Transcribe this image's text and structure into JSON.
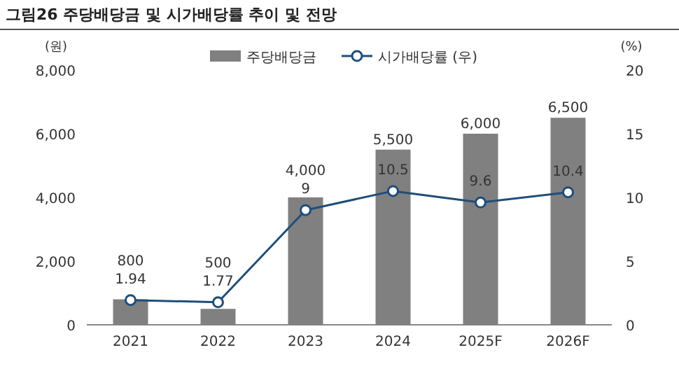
{
  "chart_data": {
    "type": "bar",
    "title": "그림26 주당배당금 및 시가배당률 추이 및 전망",
    "ylabel": "(원)",
    "y2label": "(%)",
    "categories": [
      "2021",
      "2022",
      "2023",
      "2024",
      "2025F",
      "2026F"
    ],
    "series": [
      {
        "name": "주당배당금",
        "color": "#808080",
        "values": [
          800,
          500,
          4000,
          5500,
          6000,
          6500
        ],
        "value_labels": [
          "800",
          "500",
          "4,000",
          "5,500",
          "6,000",
          "6,500"
        ]
      },
      {
        "name": "시가배당률 (우)",
        "type": "line",
        "axis": "y2",
        "color": "#1f4e79",
        "marker": "circle",
        "values": [
          1.94,
          1.77,
          9,
          10.5,
          9.6,
          10.4
        ],
        "value_labels": [
          "1.94",
          "1.77",
          "9",
          "10.5",
          "9.6",
          "10.4"
        ]
      }
    ],
    "ylim": [
      0,
      8000
    ],
    "yticks": [
      0,
      {
        "value": 2000,
        "label": "2,000"
      },
      {
        "value": 4000,
        "label": "4,000"
      },
      {
        "value": 6000,
        "label": "6,000"
      },
      {
        "value": 8000,
        "label": "8,000"
      }
    ],
    "y2lim": [
      0,
      20
    ],
    "y2ticks": [
      0,
      5,
      10,
      15,
      20
    ],
    "legend": "top",
    "grid": false
  }
}
